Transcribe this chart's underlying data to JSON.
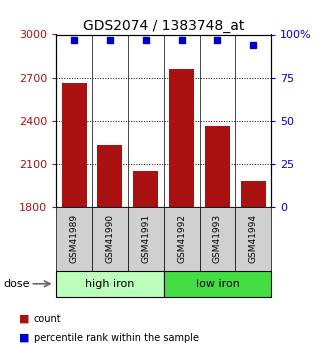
{
  "title": "GDS2074 / 1383748_at",
  "categories": [
    "GSM41989",
    "GSM41990",
    "GSM41991",
    "GSM41992",
    "GSM41993",
    "GSM41994"
  ],
  "bar_values": [
    2660,
    2230,
    2050,
    2760,
    2360,
    1980
  ],
  "dot_values": [
    97,
    97,
    97,
    97,
    97,
    94
  ],
  "bar_color": "#aa1111",
  "dot_color": "#0000cc",
  "ylim_left": [
    1800,
    3000
  ],
  "ylim_right": [
    0,
    100
  ],
  "yticks_left": [
    1800,
    2100,
    2400,
    2700,
    3000
  ],
  "yticks_right": [
    0,
    25,
    50,
    75,
    100
  ],
  "ytick_labels_right": [
    "0",
    "25",
    "50",
    "75",
    "100%"
  ],
  "groups": [
    {
      "label": "high iron",
      "indices": [
        0,
        1,
        2
      ],
      "color": "#bbffbb"
    },
    {
      "label": "low iron",
      "indices": [
        3,
        4,
        5
      ],
      "color": "#44dd44"
    }
  ],
  "dose_label": "dose",
  "legend_items": [
    {
      "label": "count",
      "color": "#aa1111"
    },
    {
      "label": "percentile rank within the sample",
      "color": "#0000cc"
    }
  ],
  "grid_yticks": [
    2100,
    2400,
    2700
  ],
  "title_fontsize": 10,
  "tick_fontsize": 8,
  "bar_width": 0.7
}
